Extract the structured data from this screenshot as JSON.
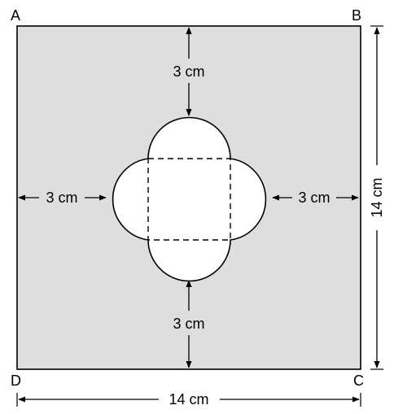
{
  "vertices": {
    "a": "A",
    "b": "B",
    "c": "C",
    "d": "D"
  },
  "dimensions": {
    "top_gap": "3 cm",
    "bottom_gap": "3 cm",
    "left_gap": "3 cm",
    "right_gap": "3 cm",
    "width": "14 cm",
    "height": "14 cm"
  },
  "colors": {
    "square_fill": "#dedede",
    "cutout_fill": "#ffffff",
    "stroke": "#000000"
  }
}
